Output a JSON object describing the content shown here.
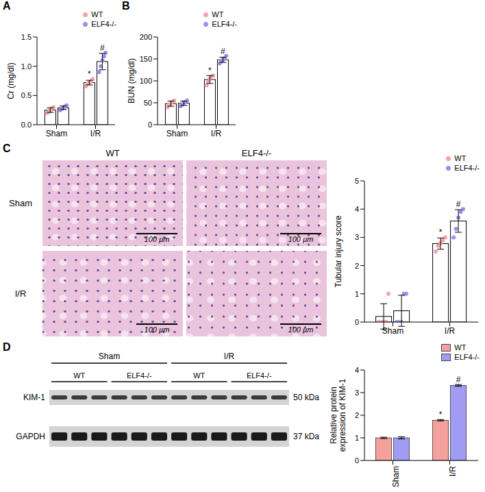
{
  "chart_data": [
    {
      "panel_label": "A",
      "type": "bar",
      "y_label": "Cr (mg/dl)",
      "categories": [
        "Sham",
        "I/R"
      ],
      "ylim": [
        0,
        1.5
      ],
      "yticks": [
        {
          "value": 0,
          "label": "0.0"
        },
        0.5,
        {
          "value": 1,
          "label": "1.0"
        },
        1.5
      ],
      "legend": "top-right",
      "series": [
        {
          "name": "WT",
          "color": "#f4a3a8",
          "marker": "circle",
          "values": [
            0.25,
            0.72
          ],
          "errors": [
            0.04,
            0.04
          ],
          "points": [
            [
              0.2,
              0.22,
              0.25,
              0.28,
              0.3
            ],
            [
              0.66,
              0.7,
              0.72,
              0.74,
              0.78
            ]
          ],
          "annotations": [
            null,
            "*"
          ]
        },
        {
          "name": "ELF4-/-",
          "color": "#9d8fe6",
          "marker": "circle",
          "values": [
            0.29,
            1.08
          ],
          "errors": [
            0.03,
            0.14
          ],
          "points": [
            [
              0.25,
              0.27,
              0.29,
              0.31,
              0.33
            ],
            [
              0.9,
              1.0,
              1.1,
              1.17,
              1.23
            ]
          ],
          "annotations": [
            null,
            "#"
          ]
        }
      ]
    },
    {
      "panel_label": "B",
      "type": "bar",
      "y_label": "BUN (mg/dl)",
      "categories": [
        "Sham",
        "I/R"
      ],
      "ylim": [
        0,
        200
      ],
      "yticks": [
        0,
        50,
        100,
        150,
        200
      ],
      "legend": "top-right",
      "series": [
        {
          "name": "WT",
          "color": "#f4a3a8",
          "marker": "circle",
          "values": [
            48,
            103
          ],
          "errors": [
            6,
            9
          ],
          "points": [
            [
              40,
              45,
              48,
              52,
              55
            ],
            [
              90,
              98,
              105,
              110,
              112
            ]
          ],
          "annotations": [
            null,
            "*"
          ]
        },
        {
          "name": "ELF4-/-",
          "color": "#9d8fe6",
          "marker": "circle",
          "values": [
            49,
            148
          ],
          "errors": [
            5,
            6
          ],
          "points": [
            [
              42,
              46,
              50,
              52,
              55
            ],
            [
              140,
              145,
              148,
              150,
              157
            ]
          ],
          "annotations": [
            null,
            "#"
          ]
        }
      ]
    },
    {
      "panel_label": "C",
      "type": "bar",
      "y_label": "Tubular injury score",
      "categories": [
        "Sham",
        "I/R"
      ],
      "ylim": [
        0,
        5
      ],
      "yticks": [
        0,
        1,
        2,
        3,
        4,
        5
      ],
      "legend": "top-right",
      "series": [
        {
          "name": "WT",
          "color": "#f4a3a8",
          "marker": "circle",
          "values": [
            0.2,
            2.78
          ],
          "errors": [
            0.45,
            0.2
          ],
          "points": [
            [
              0,
              0,
              0,
              0,
              1
            ],
            [
              2.5,
              2.7,
              2.8,
              2.9,
              3.0
            ]
          ],
          "annotations": [
            null,
            "*"
          ]
        },
        {
          "name": "ELF4-/-",
          "color": "#9d8fe6",
          "marker": "circle",
          "values": [
            0.4,
            3.58
          ],
          "errors": [
            0.55,
            0.4
          ],
          "points": [
            [
              0,
              0,
              0,
              1,
              1
            ],
            [
              3.0,
              3.3,
              3.7,
              3.9,
              4.0
            ]
          ],
          "annotations": [
            null,
            "#"
          ]
        }
      ]
    },
    {
      "panel_label": "D",
      "type": "bar",
      "y_label": "Relative protein expression of KIM-1",
      "categories": [
        "Sham",
        "I/R"
      ],
      "ylim": [
        0,
        4
      ],
      "yticks": [
        0,
        1,
        2,
        3,
        4
      ],
      "legend": "top-right",
      "series": [
        {
          "name": "WT",
          "color": "#f4a09c",
          "values": [
            1,
            1.78
          ],
          "errors": [
            0.03,
            0.03
          ],
          "annotations": [
            null,
            "*"
          ]
        },
        {
          "name": "ELF4-/-",
          "color": "#a09cf4",
          "values": [
            1,
            3.32
          ],
          "errors": [
            0.05,
            0.04
          ],
          "annotations": [
            null,
            "#"
          ]
        }
      ]
    }
  ],
  "panel_c_images": {
    "columns": [
      "WT",
      "ELF4-/-"
    ],
    "rows": [
      "Sham",
      "I/R"
    ],
    "scale_bar": "100 µm"
  },
  "panel_d_blot": {
    "groups": [
      {
        "label": "Sham",
        "subgroups": [
          "WT",
          "ELF4-/-"
        ]
      },
      {
        "label": "I/R",
        "subgroups": [
          "WT",
          "ELF4-/-"
        ]
      }
    ],
    "rows": [
      {
        "protein": "KIM-1",
        "size": "50 kDa"
      },
      {
        "protein": "GAPDH",
        "size": "37 kDa"
      }
    ]
  }
}
